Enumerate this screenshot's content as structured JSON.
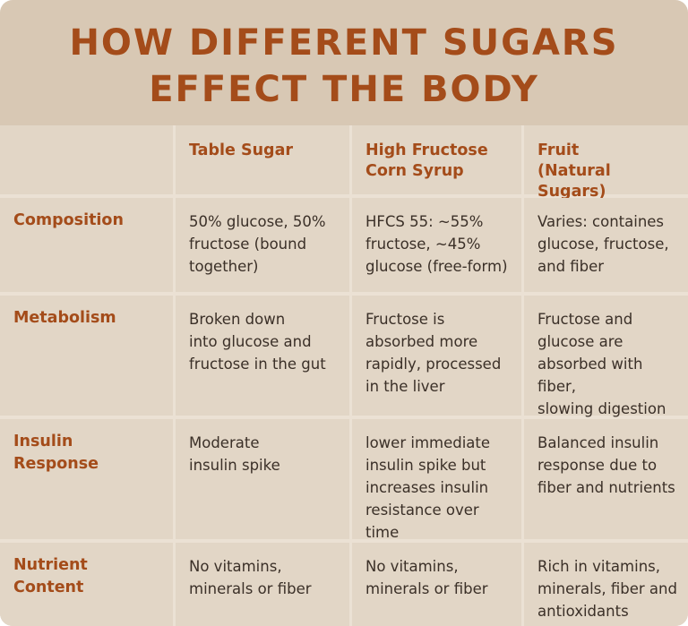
{
  "title": {
    "line1": "HOW DIFFERENT SUGARS",
    "line2": "EFFECT THE BODY"
  },
  "table": {
    "columns": [
      "",
      "Table Sugar",
      "High Fructose\nCorn Syrup",
      "Fruit\n(Natural Sugars)"
    ],
    "rows": [
      {
        "label": "Composition",
        "cells": [
          "50% glucose, 50%\nfructose (bound\ntogether)",
          "HFCS 55: ~55%\nfructose, ~45%\nglucose (free-form)",
          "Varies: containes\nglucose, fructose,\nand fiber"
        ]
      },
      {
        "label": "Metabolism",
        "cells": [
          "Broken down\ninto glucose and\nfructose in the gut",
          "Fructose is\nabsorbed more\nrapidly, processed\nin the liver",
          "Fructose and\nglucose are\nabsorbed with fiber,\nslowing digestion"
        ]
      },
      {
        "label": "Insulin Response",
        "cells": [
          "Moderate\ninsulin spike",
          "lower immediate\ninsulin spike but\nincreases insulin\nresistance over time",
          "Balanced insulin\nresponse due to\nfiber and nutrients"
        ]
      },
      {
        "label": "Nutrient Content",
        "cells": [
          "No vitamins,\nminerals or fiber",
          "No vitamins,\nminerals or fiber",
          "Rich in vitamins,\nminerals, fiber and\nantioxidants"
        ]
      }
    ]
  }
}
